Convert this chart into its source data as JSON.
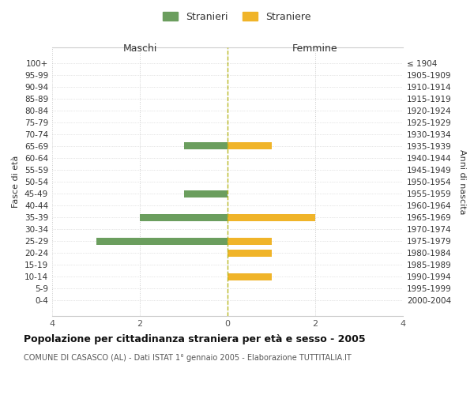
{
  "age_groups": [
    "100+",
    "95-99",
    "90-94",
    "85-89",
    "80-84",
    "75-79",
    "70-74",
    "65-69",
    "60-64",
    "55-59",
    "50-54",
    "45-49",
    "40-44",
    "35-39",
    "30-34",
    "25-29",
    "20-24",
    "15-19",
    "10-14",
    "5-9",
    "0-4"
  ],
  "birth_years": [
    "≤ 1904",
    "1905-1909",
    "1910-1914",
    "1915-1919",
    "1920-1924",
    "1925-1929",
    "1930-1934",
    "1935-1939",
    "1940-1944",
    "1945-1949",
    "1950-1954",
    "1955-1959",
    "1960-1964",
    "1965-1969",
    "1970-1974",
    "1975-1979",
    "1980-1984",
    "1985-1989",
    "1990-1994",
    "1995-1999",
    "2000-2004"
  ],
  "maschi": [
    0,
    0,
    0,
    0,
    0,
    0,
    0,
    1,
    0,
    0,
    0,
    1,
    0,
    2,
    0,
    3,
    0,
    0,
    0,
    0,
    0
  ],
  "femmine": [
    0,
    0,
    0,
    0,
    0,
    0,
    0,
    1,
    0,
    0,
    0,
    0,
    0,
    2,
    0,
    1,
    1,
    0,
    1,
    0,
    0
  ],
  "maschi_color": "#6b9e5e",
  "femmine_color": "#f0b429",
  "title_main": "Popolazione per cittadinanza straniera per età e sesso - 2005",
  "title_sub": "COMUNE DI CASASCO (AL) - Dati ISTAT 1° gennaio 2005 - Elaborazione TUTTITALIA.IT",
  "label_maschi": "Stranieri",
  "label_femmine": "Straniere",
  "xlabel_left": "Maschi",
  "xlabel_right": "Femmine",
  "ylabel_left": "Fasce di età",
  "ylabel_right": "Anni di nascita",
  "xlim": 4,
  "background_color": "#ffffff",
  "grid_color": "#cccccc",
  "bar_height": 0.6
}
